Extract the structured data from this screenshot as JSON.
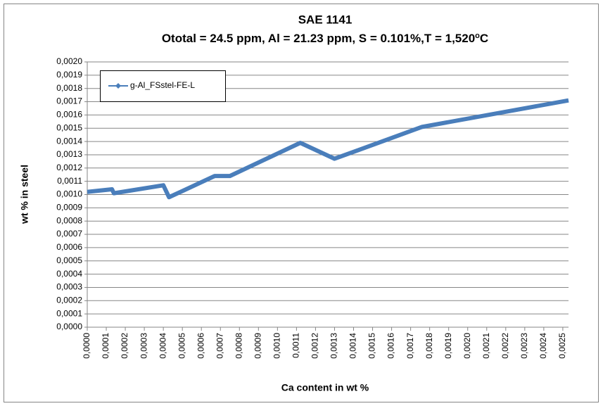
{
  "chart_data": {
    "type": "line",
    "title": "SAE 1141",
    "subtitle": {
      "text": "Ototal = 24.5 ppm, Al = 21.23 ppm, S = 0.101%,T = 1,520",
      "superscript": "o",
      "unit": "C"
    },
    "x_label": "Ca content in wt %",
    "y_label": "wt % in steel",
    "x": [
      0,
      0.00013,
      0.00014,
      0.0004,
      0.00043,
      0.00067,
      0.00075,
      0.00112,
      0.0013,
      0.00176,
      0.00253
    ],
    "series": [
      {
        "name": "g-Al_FSstel-FE-L",
        "color": "#4a7ebb",
        "values": [
          0.00102,
          0.00104,
          0.00101,
          0.00107,
          0.00098,
          0.00114,
          0.00114,
          0.00139,
          0.00127,
          0.00151,
          0.00171
        ]
      }
    ],
    "xlim": [
      0,
      0.00253
    ],
    "ylim": [
      0,
      0.002
    ],
    "grid": true,
    "legend": "top-left",
    "xticks": [
      {
        "value": 0,
        "label": "0,0000"
      },
      {
        "value": 0.0001,
        "label": "0,0001"
      },
      {
        "value": 0.0002,
        "label": "0,0002"
      },
      {
        "value": 0.0003,
        "label": "0,0003"
      },
      {
        "value": 0.0004,
        "label": "0,0004"
      },
      {
        "value": 0.0005,
        "label": "0,0005"
      },
      {
        "value": 0.0006,
        "label": "0,0006"
      },
      {
        "value": 0.0007,
        "label": "0,0007"
      },
      {
        "value": 0.0008,
        "label": "0,0008"
      },
      {
        "value": 0.0009,
        "label": "0,0009"
      },
      {
        "value": 0.001,
        "label": "0,0010"
      },
      {
        "value": 0.0011,
        "label": "0,0011"
      },
      {
        "value": 0.0012,
        "label": "0,0012"
      },
      {
        "value": 0.0013,
        "label": "0,0013"
      },
      {
        "value": 0.0014,
        "label": "0,0014"
      },
      {
        "value": 0.0015,
        "label": "0,0015"
      },
      {
        "value": 0.0016,
        "label": "0,0016"
      },
      {
        "value": 0.0017,
        "label": "0,0017"
      },
      {
        "value": 0.0018,
        "label": "0,0018"
      },
      {
        "value": 0.0019,
        "label": "0,0019"
      },
      {
        "value": 0.002,
        "label": "0,0020"
      },
      {
        "value": 0.0021,
        "label": "0,0021"
      },
      {
        "value": 0.0022,
        "label": "0,0022"
      },
      {
        "value": 0.0023,
        "label": "0,0023"
      },
      {
        "value": 0.0024,
        "label": "0,0024"
      },
      {
        "value": 0.0025,
        "label": "0,0025"
      }
    ],
    "yticks": [
      {
        "value": 0,
        "label": "0,0000"
      },
      {
        "value": 0.0001,
        "label": "0,0001"
      },
      {
        "value": 0.0002,
        "label": "0,0002"
      },
      {
        "value": 0.0003,
        "label": "0,0003"
      },
      {
        "value": 0.0004,
        "label": "0,0004"
      },
      {
        "value": 0.0005,
        "label": "0,0005"
      },
      {
        "value": 0.0006,
        "label": "0,0006"
      },
      {
        "value": 0.0007,
        "label": "0,0007"
      },
      {
        "value": 0.0008,
        "label": "0,0008"
      },
      {
        "value": 0.0009,
        "label": "0,0009"
      },
      {
        "value": 0.001,
        "label": "0,0010"
      },
      {
        "value": 0.0011,
        "label": "0,0011"
      },
      {
        "value": 0.0012,
        "label": "0,0012"
      },
      {
        "value": 0.0013,
        "label": "0,0013"
      },
      {
        "value": 0.0014,
        "label": "0,0014"
      },
      {
        "value": 0.0015,
        "label": "0,0015"
      },
      {
        "value": 0.0016,
        "label": "0,0016"
      },
      {
        "value": 0.0017,
        "label": "0,0017"
      },
      {
        "value": 0.0018,
        "label": "0,0018"
      },
      {
        "value": 0.0019,
        "label": "0,0019"
      },
      {
        "value": 0.002,
        "label": "0,0020"
      }
    ]
  }
}
